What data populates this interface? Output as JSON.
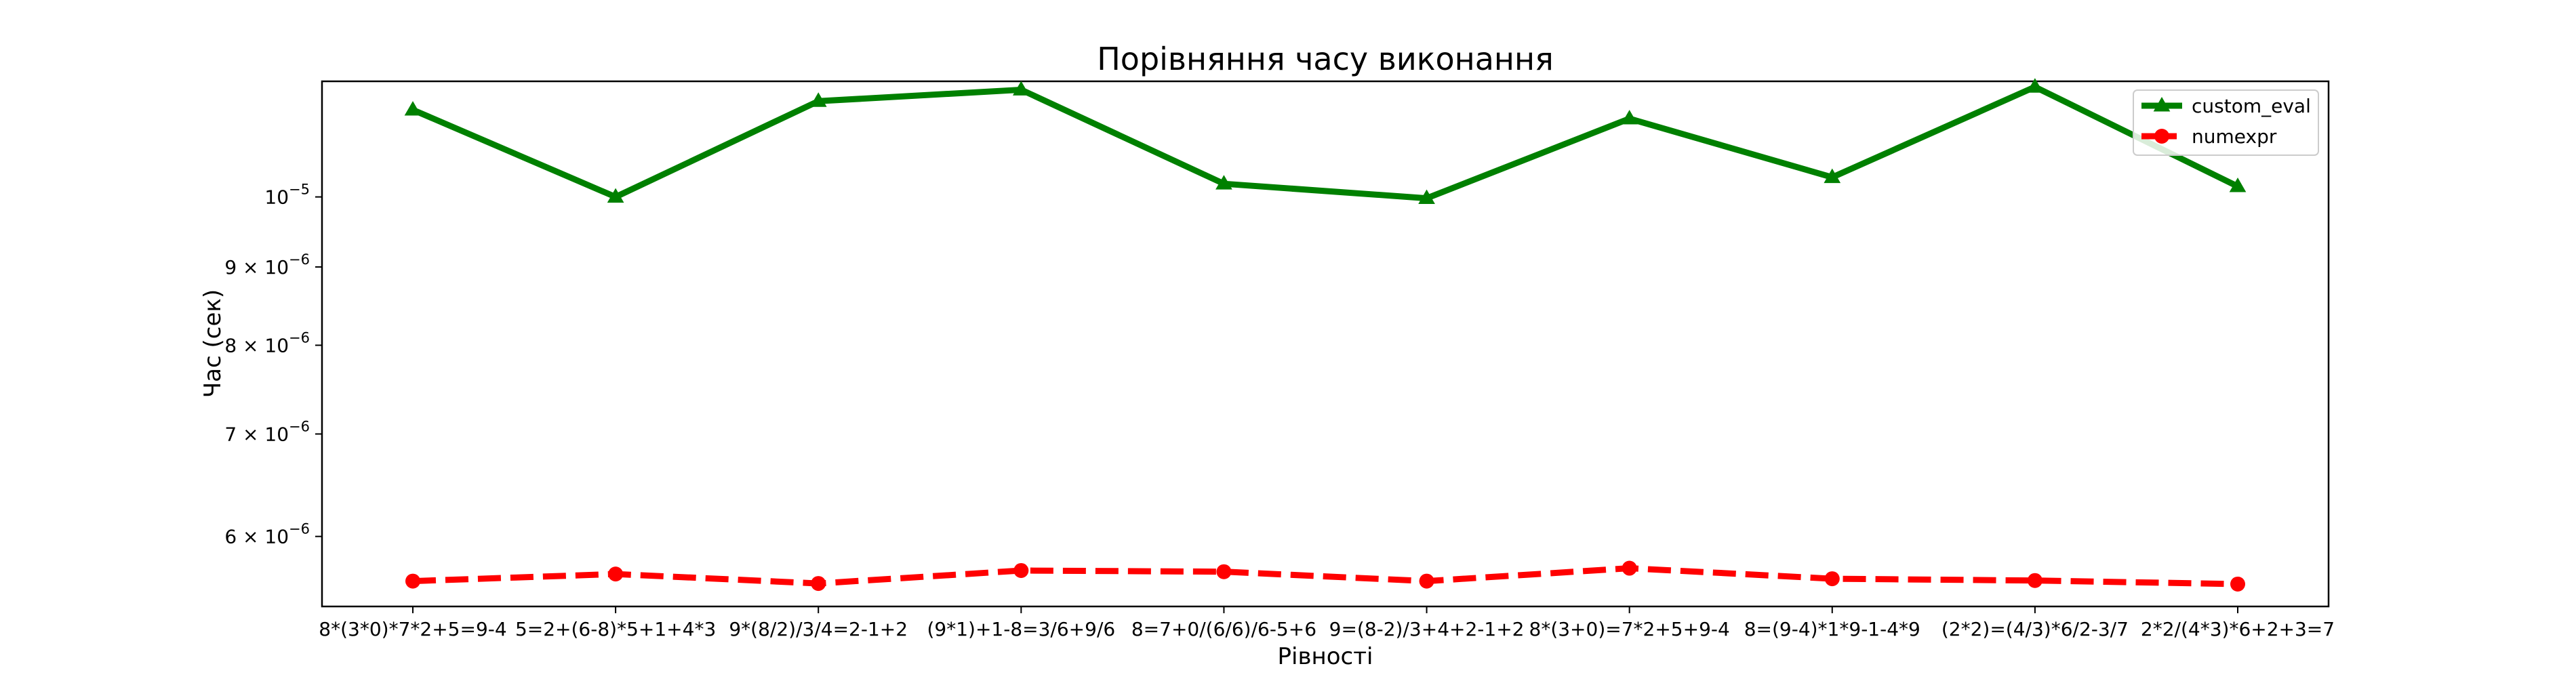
{
  "chart_data": {
    "type": "line",
    "title": "Порівняння часу виконання",
    "xlabel": "Рівності",
    "ylabel": "Час (сек)",
    "y_scale": "log",
    "ylim": [
      5.4e-06,
      1.19e-05
    ],
    "y_ticks": [
      {
        "value": 6e-06,
        "mantissa": "6",
        "exp": "−6"
      },
      {
        "value": 7e-06,
        "mantissa": "7",
        "exp": "−6"
      },
      {
        "value": 8e-06,
        "mantissa": "8",
        "exp": "−6"
      },
      {
        "value": 9e-06,
        "mantissa": "9",
        "exp": "−6"
      },
      {
        "value": 1e-05,
        "mantissa": "",
        "exp": "−5"
      }
    ],
    "categories": [
      "8*(3*0)*7*2+5=9-4",
      "5=2+(6-8)*5+1+4*3",
      "9*(8/2)/3/4=2-1+2",
      "(9*1)+1-8=3/6+9/6",
      "8=7+0/(6/6)/6-5+6",
      "9=(8-2)/3+4+2-1+2",
      "8*(3+0)=7*2+5+9-4",
      "8=(9-4)*1*9-1-4*9",
      "(2*2)=(4/3)*6/2-3/7",
      "2*2/(4*3)*6+2+3=7"
    ],
    "series": [
      {
        "name": "custom_eval",
        "color": "#008000",
        "marker": "triangle",
        "linestyle": "solid",
        "values": [
          1.14e-05,
          1e-05,
          1.155e-05,
          1.175e-05,
          1.02e-05,
          9.98e-06,
          1.125e-05,
          1.03e-05,
          1.18e-05,
          1.016e-05
        ]
      },
      {
        "name": "numexpr",
        "color": "#ff0000",
        "marker": "circle",
        "linestyle": "dashed",
        "values": [
          5.61e-06,
          5.67e-06,
          5.59e-06,
          5.7e-06,
          5.69e-06,
          5.61e-06,
          5.72e-06,
          5.63e-06,
          5.615e-06,
          5.585e-06
        ]
      }
    ],
    "legend_position": "top-right",
    "grid": false
  }
}
